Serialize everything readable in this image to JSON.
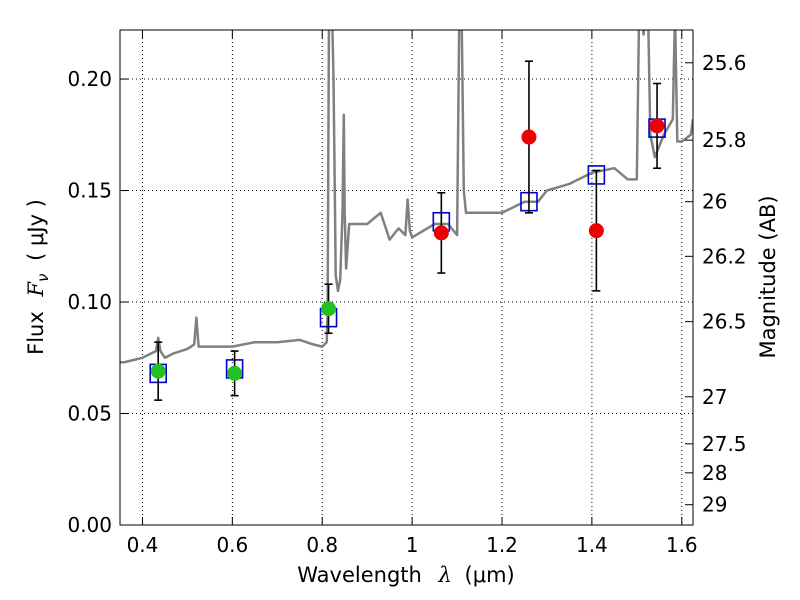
{
  "chart_data": {
    "type": "scatter",
    "title": "",
    "xlabel": "Wavelength",
    "xlabel_symbol": "λ",
    "xlabel_unit": "(μm)",
    "ylabel": "Flux",
    "ylabel_symbol": "F",
    "ylabel_subscript": "ν",
    "ylabel_unit": "( μJy )",
    "y2label": "Magnitude (AB)",
    "xlim": [
      0.35,
      1.625
    ],
    "ylim": [
      0.0,
      0.222
    ],
    "grid": true,
    "x_ticks": [
      {
        "value": 0.4,
        "label": "0.4"
      },
      {
        "value": 0.6,
        "label": "0.6"
      },
      {
        "value": 0.8,
        "label": "0.8"
      },
      {
        "value": 1.0,
        "label": "1"
      },
      {
        "value": 1.2,
        "label": "1.2"
      },
      {
        "value": 1.4,
        "label": "1.4"
      },
      {
        "value": 1.6,
        "label": "1.6"
      }
    ],
    "y_ticks": [
      {
        "value": 0.0,
        "label": "0.00"
      },
      {
        "value": 0.05,
        "label": "0.05"
      },
      {
        "value": 0.1,
        "label": "0.10"
      },
      {
        "value": 0.15,
        "label": "0.15"
      },
      {
        "value": 0.2,
        "label": "0.20"
      }
    ],
    "y2_ticks": [
      {
        "flux": 0.2073,
        "label": "25.6"
      },
      {
        "flux": 0.1726,
        "label": "25.8"
      },
      {
        "flux": 0.145,
        "label": "26"
      },
      {
        "flux": 0.1205,
        "label": "26.2"
      },
      {
        "flux": 0.0912,
        "label": "26.5"
      },
      {
        "flux": 0.0575,
        "label": "27"
      },
      {
        "flux": 0.0364,
        "label": "27.5"
      },
      {
        "flux": 0.0234,
        "label": "28"
      },
      {
        "flux": 0.0091,
        "label": "29"
      }
    ],
    "series": [
      {
        "name": "model-spectrum",
        "kind": "line",
        "color": "#808080",
        "x": [
          0.35,
          0.36,
          0.38,
          0.4,
          0.42,
          0.43,
          0.435,
          0.44,
          0.45,
          0.47,
          0.5,
          0.515,
          0.52,
          0.525,
          0.55,
          0.6,
          0.65,
          0.7,
          0.75,
          0.78,
          0.8,
          0.81,
          0.812,
          0.815,
          0.818,
          0.82,
          0.822,
          0.825,
          0.828,
          0.83,
          0.835,
          0.84,
          0.845,
          0.848,
          0.85,
          0.853,
          0.86,
          0.9,
          0.93,
          0.95,
          0.97,
          0.985,
          0.99,
          0.995,
          1.0,
          1.05,
          1.08,
          1.1,
          1.105,
          1.11,
          1.115,
          1.12,
          1.13,
          1.2,
          1.25,
          1.28,
          1.3,
          1.35,
          1.4,
          1.45,
          1.48,
          1.5,
          1.505,
          1.51,
          1.515,
          1.52,
          1.525,
          1.53,
          1.54,
          1.56,
          1.58,
          1.585,
          1.59,
          1.6,
          1.62,
          1.625
        ],
        "y": [
          0.073,
          0.073,
          0.074,
          0.075,
          0.077,
          0.078,
          0.084,
          0.078,
          0.075,
          0.077,
          0.079,
          0.081,
          0.093,
          0.08,
          0.08,
          0.08,
          0.082,
          0.082,
          0.083,
          0.081,
          0.08,
          0.082,
          0.095,
          0.23,
          0.23,
          0.23,
          0.23,
          0.2,
          0.15,
          0.112,
          0.105,
          0.11,
          0.14,
          0.184,
          0.14,
          0.115,
          0.135,
          0.135,
          0.14,
          0.128,
          0.133,
          0.13,
          0.146,
          0.132,
          0.129,
          0.135,
          0.135,
          0.13,
          0.23,
          0.23,
          0.15,
          0.14,
          0.14,
          0.14,
          0.145,
          0.145,
          0.15,
          0.153,
          0.158,
          0.16,
          0.155,
          0.155,
          0.23,
          0.23,
          0.22,
          0.23,
          0.23,
          0.175,
          0.165,
          0.175,
          0.182,
          0.23,
          0.172,
          0.172,
          0.175,
          0.182
        ]
      },
      {
        "name": "photometry-optical",
        "kind": "points",
        "color": "#22c022",
        "points": [
          {
            "x": 0.435,
            "y": 0.069,
            "yerr": 0.013
          },
          {
            "x": 0.605,
            "y": 0.068,
            "yerr": 0.01
          },
          {
            "x": 0.814,
            "y": 0.097,
            "yerr": 0.011
          }
        ]
      },
      {
        "name": "photometry-nir",
        "kind": "points",
        "color": "#ee0000",
        "points": [
          {
            "x": 1.065,
            "y": 0.131,
            "yerr": 0.018
          },
          {
            "x": 1.26,
            "y": 0.174,
            "yerr": 0.034
          },
          {
            "x": 1.41,
            "y": 0.132,
            "yerr": 0.027
          },
          {
            "x": 1.545,
            "y": 0.179,
            "yerr": 0.019
          }
        ]
      },
      {
        "name": "model-synthetic-photometry",
        "kind": "squares",
        "color": "#0000cc",
        "points": [
          {
            "x": 0.435,
            "y": 0.068
          },
          {
            "x": 0.605,
            "y": 0.07
          },
          {
            "x": 0.814,
            "y": 0.093
          },
          {
            "x": 1.065,
            "y": 0.136
          },
          {
            "x": 1.26,
            "y": 0.145
          },
          {
            "x": 1.41,
            "y": 0.157
          },
          {
            "x": 1.545,
            "y": 0.178
          }
        ]
      }
    ]
  }
}
